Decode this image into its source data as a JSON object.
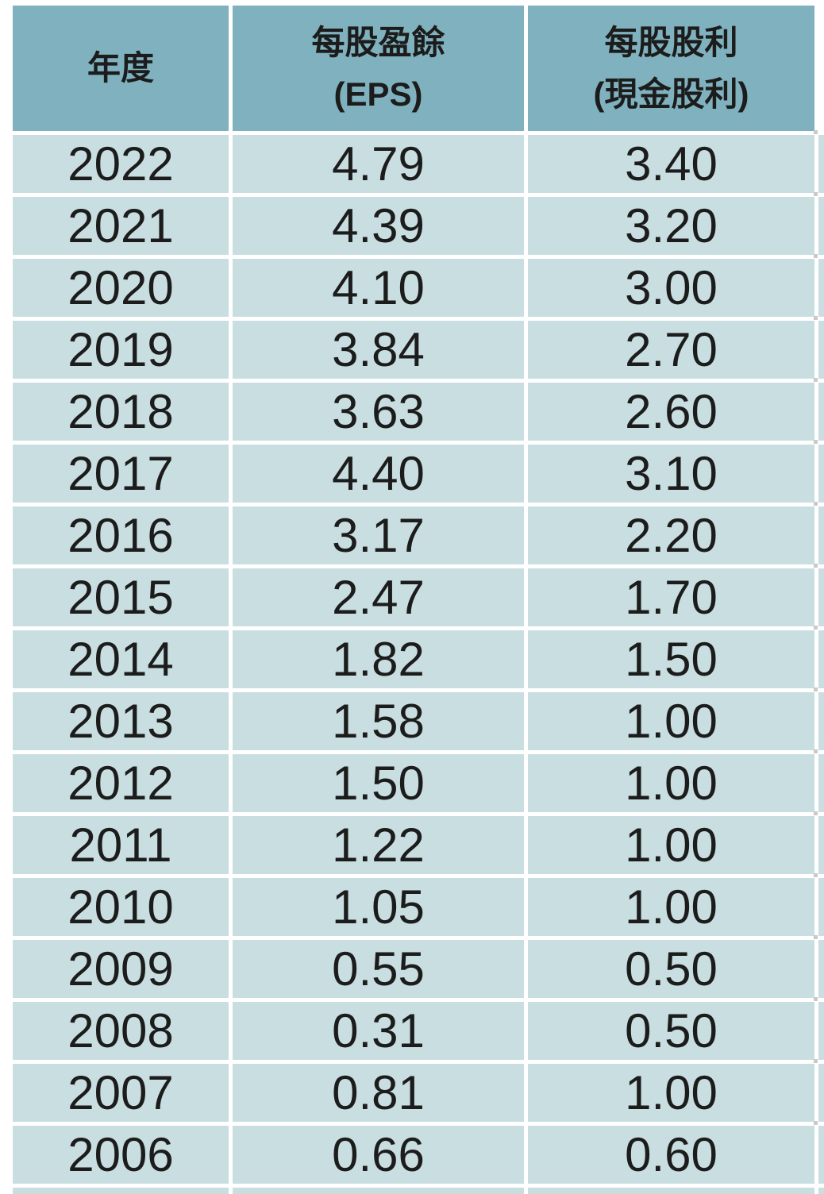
{
  "table": {
    "header": {
      "col1": "年度",
      "col2_line1": "每股盈餘",
      "col2_line2": "(EPS)",
      "col3_line1": "每股股利",
      "col3_line2": "(現金股利)"
    },
    "rows": [
      {
        "year": "2022",
        "eps": "4.79",
        "div": "3.40"
      },
      {
        "year": "2021",
        "eps": "4.39",
        "div": "3.20"
      },
      {
        "year": "2020",
        "eps": "4.10",
        "div": "3.00"
      },
      {
        "year": "2019",
        "eps": "3.84",
        "div": "2.70"
      },
      {
        "year": "2018",
        "eps": "3.63",
        "div": "2.60"
      },
      {
        "year": "2017",
        "eps": "4.40",
        "div": "3.10"
      },
      {
        "year": "2016",
        "eps": "3.17",
        "div": "2.20"
      },
      {
        "year": "2015",
        "eps": "2.47",
        "div": "1.70"
      },
      {
        "year": "2014",
        "eps": "1.82",
        "div": "1.50"
      },
      {
        "year": "2013",
        "eps": "1.58",
        "div": "1.00"
      },
      {
        "year": "2012",
        "eps": "1.50",
        "div": "1.00"
      },
      {
        "year": "2011",
        "eps": "1.22",
        "div": "1.00"
      },
      {
        "year": "2010",
        "eps": "1.05",
        "div": "1.00"
      },
      {
        "year": "2009",
        "eps": "0.55",
        "div": "0.50"
      },
      {
        "year": "2008",
        "eps": "0.31",
        "div": "0.50"
      },
      {
        "year": "2007",
        "eps": "0.81",
        "div": "1.00"
      },
      {
        "year": "2006",
        "eps": "0.66",
        "div": "0.60"
      }
    ]
  },
  "chart_data": {
    "type": "table",
    "title": "",
    "columns": [
      "年度",
      "每股盈餘 (EPS)",
      "每股股利 (現金股利)"
    ],
    "categories": [
      "2022",
      "2021",
      "2020",
      "2019",
      "2018",
      "2017",
      "2016",
      "2015",
      "2014",
      "2013",
      "2012",
      "2011",
      "2010",
      "2009",
      "2008",
      "2007",
      "2006"
    ],
    "series": [
      {
        "name": "每股盈餘 (EPS)",
        "values": [
          4.79,
          4.39,
          4.1,
          3.84,
          3.63,
          4.4,
          3.17,
          2.47,
          1.82,
          1.58,
          1.5,
          1.22,
          1.05,
          0.55,
          0.31,
          0.81,
          0.66
        ]
      },
      {
        "name": "每股股利 (現金股利)",
        "values": [
          3.4,
          3.2,
          3.0,
          2.7,
          2.6,
          3.1,
          2.2,
          1.7,
          1.5,
          1.0,
          1.0,
          1.0,
          1.0,
          0.5,
          0.5,
          1.0,
          0.6
        ]
      }
    ]
  },
  "colors": {
    "header_bg": "#7fb2be",
    "row_bg": "#c9dee1",
    "text": "#1c1c1c",
    "gutter": "#ffffff"
  }
}
